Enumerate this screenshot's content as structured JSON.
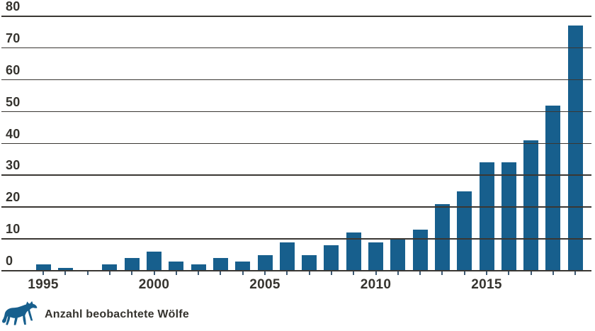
{
  "chart_data": {
    "type": "bar",
    "title": "",
    "xlabel": "",
    "ylabel": "",
    "x": [
      1995,
      1996,
      1997,
      1998,
      1999,
      2000,
      2001,
      2002,
      2003,
      2004,
      2005,
      2006,
      2007,
      2008,
      2009,
      2010,
      2011,
      2012,
      2013,
      2014,
      2015,
      2016,
      2017,
      2018,
      2019
    ],
    "values": [
      2,
      1,
      0,
      2,
      4,
      6,
      3,
      2,
      4,
      3,
      5,
      9,
      5,
      8,
      12,
      9,
      10,
      13,
      21,
      25,
      34,
      34,
      41,
      52,
      77
    ],
    "series_name": "Anzahl beobachtete Wölfe",
    "ylim": [
      0,
      80
    ],
    "yticks": [
      0,
      10,
      20,
      30,
      40,
      50,
      60,
      70,
      80
    ],
    "xtick_labeled_years": [
      1995,
      2000,
      2005,
      2010,
      2015
    ],
    "grid": "horizontal gridlines every 10, drawn over bars",
    "legend_position": "bottom-left"
  },
  "legend": {
    "label": "Anzahl beobachtete Wölfe",
    "icon": "wolf-icon"
  },
  "colors": {
    "bar": "#175f8d",
    "grid": "#3a3733",
    "text": "#35332e",
    "tick": "#3d5a74",
    "background": "#ffffff"
  }
}
